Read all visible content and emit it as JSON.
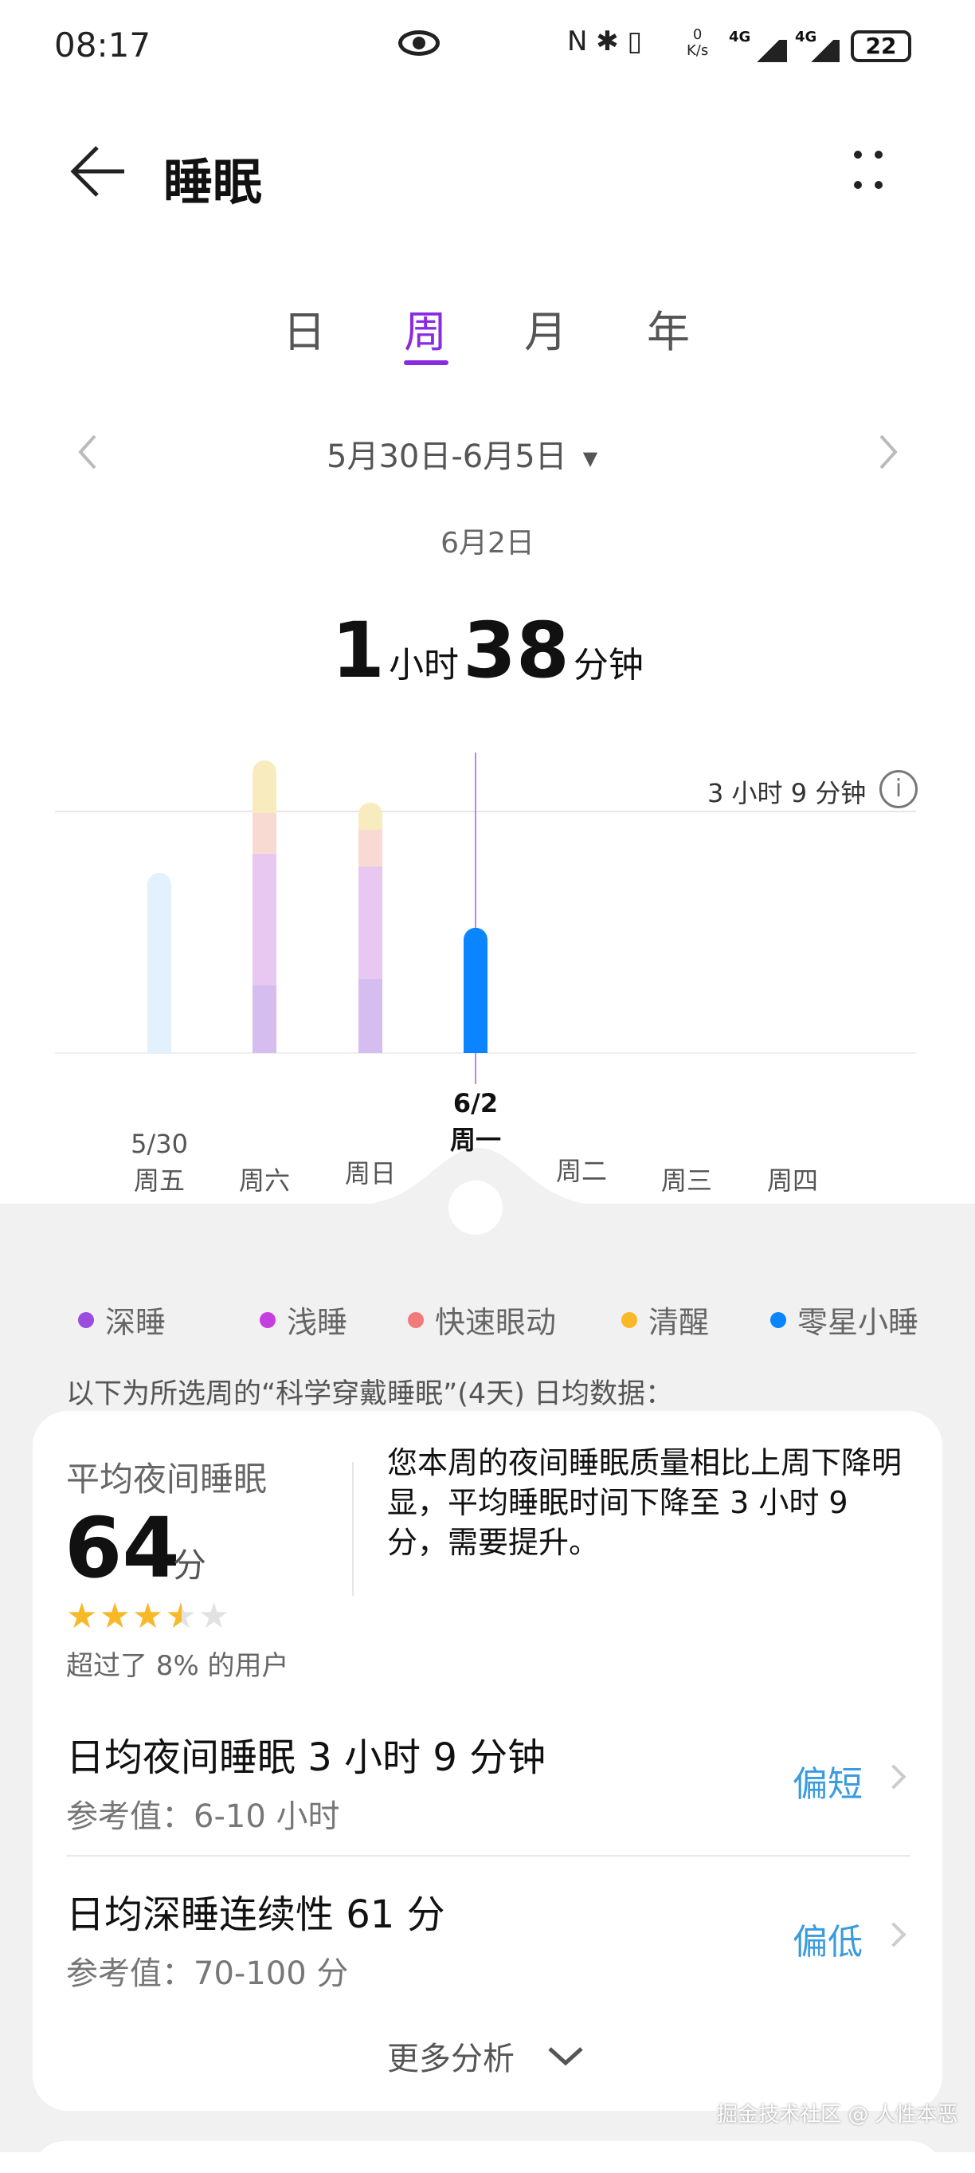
{
  "status_bar": {
    "time": "08:17",
    "net_speed_top": "0",
    "net_speed_unit": "K/s",
    "signal1": "4G",
    "signal2": "4G",
    "battery": "22"
  },
  "header": {
    "title": "睡眠"
  },
  "tabs": [
    {
      "label": "日"
    },
    {
      "label": "周",
      "active": true
    },
    {
      "label": "月"
    },
    {
      "label": "年"
    }
  ],
  "date_range": "5月30日-6月5日",
  "selected_date": "6月2日",
  "duration": {
    "hours": "1",
    "hours_unit": "小时",
    "minutes": "38",
    "minutes_unit": "分钟"
  },
  "colors": {
    "deep": "#9b4de0",
    "light": "#c63ee0",
    "rem": "#f27a7a",
    "awake": "#f7b928",
    "nap": "#0a84ff",
    "accent": "#8a2be2",
    "link": "#3a9be0"
  },
  "chart_data": {
    "type": "bar",
    "stacked": true,
    "unit": "minutes",
    "reference_line": {
      "value": 189,
      "label": "3 小时 9 分钟"
    },
    "categories": [
      "周五",
      "周六",
      "周日",
      "周一",
      "周二",
      "周三",
      "周四"
    ],
    "date_labels": [
      "5/30",
      "",
      "",
      "6/2",
      "",
      "",
      ""
    ],
    "selected": "周一",
    "series": [
      {
        "name": "深睡",
        "values": [
          0,
          53,
          58,
          0,
          0,
          0,
          0
        ]
      },
      {
        "name": "浅睡",
        "values": [
          0,
          103,
          88,
          0,
          0,
          0,
          0
        ]
      },
      {
        "name": "快速眼动",
        "values": [
          0,
          32,
          29,
          0,
          0,
          0,
          0
        ]
      },
      {
        "name": "清醒",
        "values": [
          0,
          41,
          21,
          0,
          0,
          0,
          0
        ]
      },
      {
        "name": "零星小睡",
        "values": [
          141,
          0,
          0,
          98,
          0,
          0,
          0
        ]
      }
    ]
  },
  "legend": [
    "深睡",
    "浅睡",
    "快速眼动",
    "清醒",
    "零星小睡"
  ],
  "note": "以下为所选周的“科学穿戴睡眠”(4天) 日均数据：",
  "card": {
    "score_title": "平均夜间睡眠",
    "score": "64",
    "score_unit": "分",
    "stars": 3.5,
    "percentile": "超过了 8% 的用户",
    "summary": "您本周的夜间睡眠质量相比上周下降明显，平均睡眠时间下降至 3 小时 9 分，需要提升。",
    "rows": [
      {
        "title": "日均夜间睡眠 3 小时 9 分钟",
        "ref": "参考值：6-10 小时",
        "tag": "偏短"
      },
      {
        "title": "日均深睡连续性 61 分",
        "ref": "参考值：70-100 分",
        "tag": "偏低"
      }
    ],
    "more": "更多分析"
  },
  "watermark": "掘金技术社区 @ 人性本恶"
}
